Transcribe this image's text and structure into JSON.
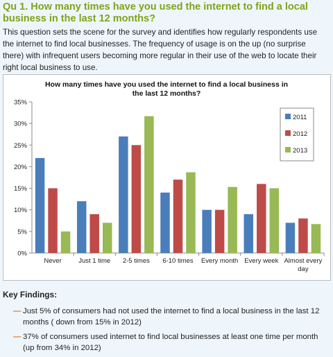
{
  "heading": "Qu 1. How many times have you used the internet to find a local business in the last 12 months?",
  "intro": "This question sets the scene for the survey and identifies how regularly respondents use the internet to find local businesses. The frequency of usage is on the up (no surprise there) with infrequent users becoming more regular in their use of the web to locate their right local business to use.",
  "chart_data": {
    "type": "bar",
    "title": "How many times have you used the internet to find a local business in the last 12 months?",
    "xlabel": "",
    "ylabel": "",
    "categories": [
      "Never",
      "Just 1 time",
      "2-5 times",
      "6-10 times",
      "Every month",
      "Every week",
      "Almost every day"
    ],
    "series": [
      {
        "name": "2011",
        "color": "#4a7ebb",
        "values": [
          22,
          12,
          27,
          14,
          10,
          9,
          7
        ]
      },
      {
        "name": "2012",
        "color": "#be4b48",
        "values": [
          15,
          9,
          25,
          17,
          10,
          16,
          8
        ]
      },
      {
        "name": "2013",
        "color": "#98b954",
        "values": [
          5,
          7,
          31.7,
          18.7,
          15.3,
          15,
          6.7
        ]
      }
    ],
    "ylim": [
      0,
      35
    ],
    "yticks": [
      "0%",
      "5%",
      "10%",
      "15%",
      "20%",
      "25%",
      "30%",
      "35%"
    ],
    "grid": false,
    "legend_position": "top-right"
  },
  "key_findings": {
    "title": "Key Findings:",
    "items": [
      {
        "dash": "—",
        "text": "Just 5% of consumers had not used the internet to find a local business in the last 12 months ( down from 15% in 2012)"
      },
      {
        "dash": "—",
        "text": "37% of consumers used internet to find local businesses at least one time per month (up from 34% in 2012)"
      }
    ]
  }
}
